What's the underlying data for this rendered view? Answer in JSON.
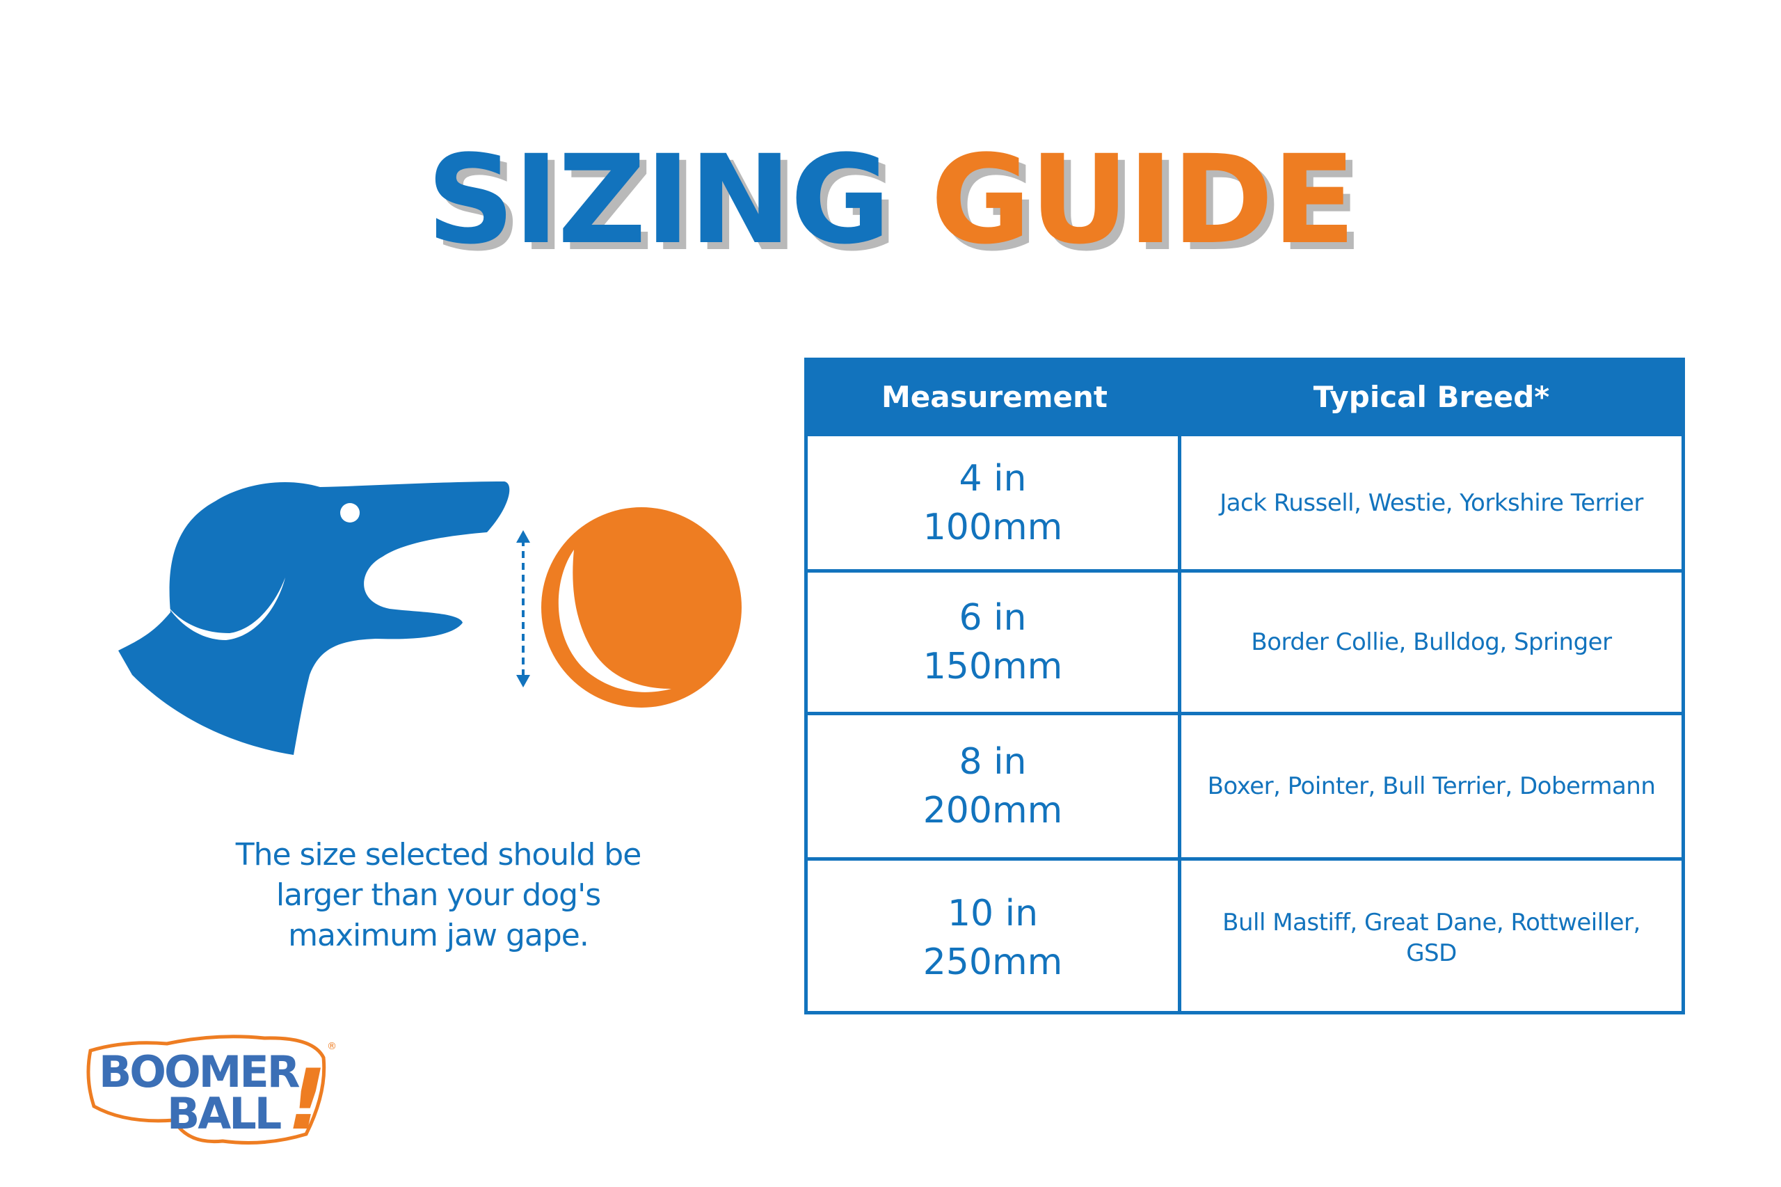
{
  "title": {
    "part1": "SIZING",
    "part2": "GUIDE"
  },
  "caption": [
    "The size selected should be",
    "larger than your dog's",
    "maximum jaw gape."
  ],
  "table": {
    "headers": [
      "Measurement",
      "Typical Breed*"
    ],
    "rows": [
      {
        "inches": "4 in",
        "mm": "100mm",
        "breeds": "Jack Russell, Westie, Yorkshire Terrier"
      },
      {
        "inches": "6 in",
        "mm": "150mm",
        "breeds": "Border Collie, Bulldog, Springer"
      },
      {
        "inches": "8 in",
        "mm": "200mm",
        "breeds": "Boxer, Pointer, Bull Terrier, Dobermann"
      },
      {
        "inches": "10 in",
        "mm": "250mm",
        "breeds": "Bull Mastiff, Great Dane, Rottweiller, GSD"
      }
    ]
  },
  "logo": {
    "line1": "BOOMER",
    "line2": "BALL",
    "mark": "!",
    "registered": "®"
  },
  "colors": {
    "blue": "#1273bd",
    "orange": "#ee7d22",
    "logo_blue": "#3b6fb6",
    "shadow": "#b9b9b9"
  },
  "icons": [
    "dog-head-icon",
    "ball-icon",
    "jaw-gape-arrow-icon"
  ]
}
